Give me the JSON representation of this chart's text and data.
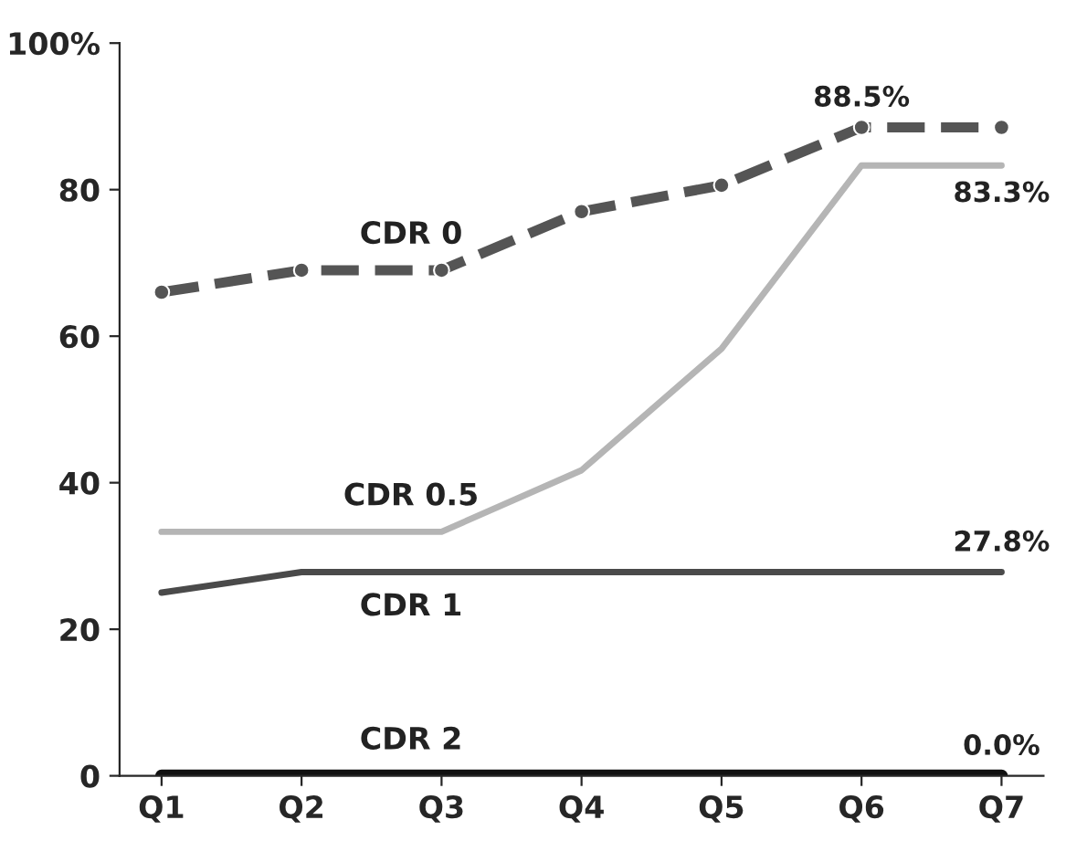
{
  "chart_data": {
    "type": "line",
    "categories": [
      "Q1",
      "Q2",
      "Q3",
      "Q4",
      "Q5",
      "Q6",
      "Q7"
    ],
    "series": [
      {
        "name": "CDR 0",
        "color": "#555555",
        "line_style": "dashed",
        "marker": "circle",
        "values": [
          66,
          69,
          69,
          77,
          80.6,
          88.5,
          88.5
        ],
        "value_labels": [
          null,
          null,
          null,
          null,
          null,
          "88.5%",
          null
        ]
      },
      {
        "name": "CDR 0.5",
        "color": "#b5b5b5",
        "line_style": "solid",
        "marker": "none",
        "values": [
          33.3,
          33.3,
          33.3,
          41.7,
          58.3,
          83.3,
          83.3
        ],
        "value_labels": [
          null,
          null,
          null,
          null,
          null,
          null,
          "83.3%"
        ]
      },
      {
        "name": "CDR 1",
        "color": "#4a4a4a",
        "line_style": "solid",
        "marker": "none",
        "values": [
          25,
          27.8,
          27.8,
          27.8,
          27.8,
          27.8,
          27.8
        ],
        "value_labels": [
          null,
          null,
          null,
          null,
          null,
          null,
          "27.8%"
        ]
      },
      {
        "name": "CDR 2",
        "color": "#111111",
        "line_style": "solid",
        "marker": "none",
        "values": [
          0,
          0,
          0,
          0,
          0,
          0,
          0
        ],
        "value_labels": [
          null,
          null,
          null,
          null,
          null,
          null,
          "0.0%"
        ]
      }
    ],
    "ylim": [
      0,
      100
    ],
    "yticks": [
      0,
      20,
      40,
      60,
      80,
      {
        "value": 100,
        "label": "100%"
      }
    ],
    "grid": false,
    "legend": false
  }
}
